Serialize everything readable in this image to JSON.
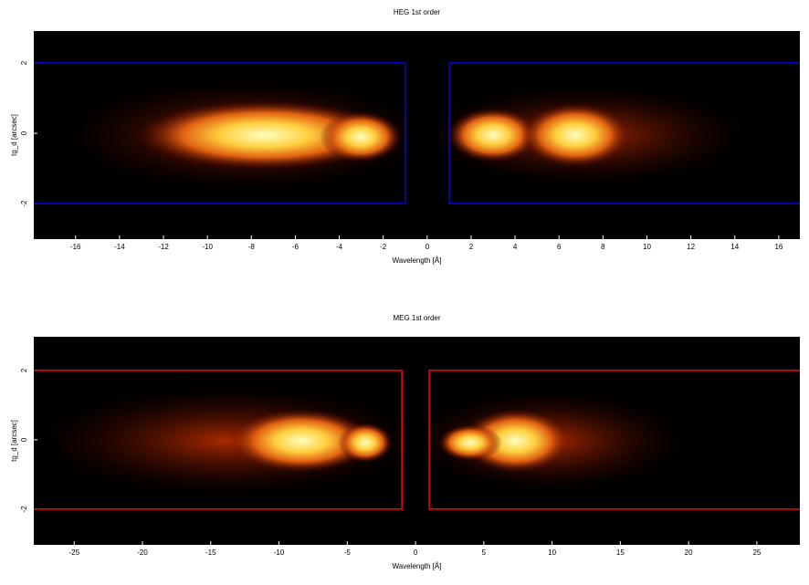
{
  "chart_data": [
    {
      "type": "heatmap",
      "title": "HEG 1st order",
      "x_label": "Wavelength [Å]",
      "y_label": "tg_d [arcsec]",
      "xlim": [
        -17.9,
        16.96
      ],
      "ylim": [
        -3.01,
        2.91
      ],
      "xticks": [
        -16,
        -14,
        -12,
        -10,
        -8,
        -6,
        -4,
        -2,
        0,
        2,
        4,
        6,
        8,
        10,
        12,
        14,
        16
      ],
      "yticks": [
        -2,
        0,
        2
      ],
      "regions": {
        "color": "#0000ff",
        "x": [
          [
            -20,
            -1
          ],
          [
            1,
            20
          ]
        ],
        "y": [
          -2,
          2
        ]
      }
    },
    {
      "type": "heatmap",
      "title": "MEG 1st order",
      "x_label": "Wavelength [Å]",
      "y_label": "tg_d [arcsec]",
      "xlim": [
        -27.96,
        28.15
      ],
      "ylim": [
        -3.03,
        2.97
      ],
      "xticks": [
        -25,
        -20,
        -15,
        -10,
        -5,
        0,
        5,
        10,
        15,
        20,
        25
      ],
      "yticks": [
        -2,
        0,
        2
      ],
      "regions": {
        "color": "#ff0000",
        "x": [
          [
            -30,
            -1
          ],
          [
            1,
            30
          ]
        ],
        "y": [
          -2,
          2
        ]
      }
    }
  ]
}
